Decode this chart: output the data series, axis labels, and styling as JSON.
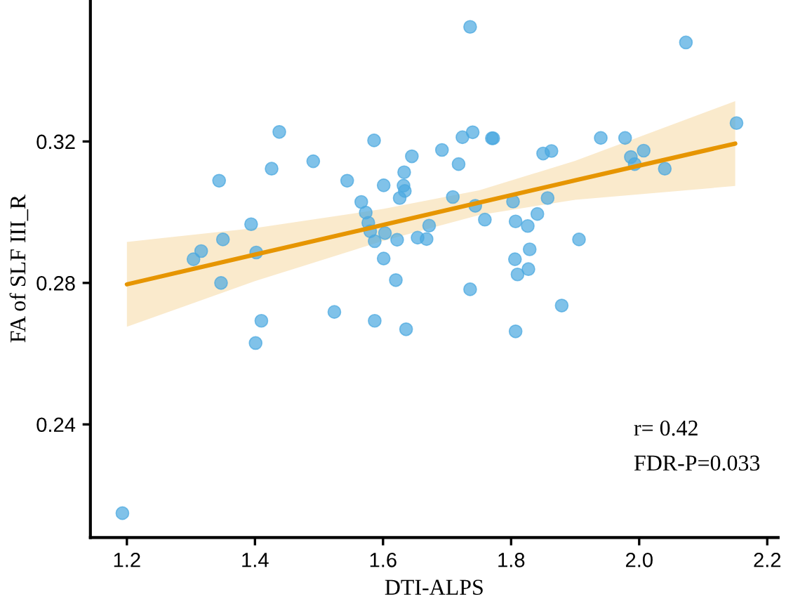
{
  "chart_data": {
    "type": "scatter",
    "xlabel": "DTI-ALPS",
    "ylabel": "FA of SLF III_R",
    "xlim": [
      1.143,
      2.217
    ],
    "ylim": [
      0.208,
      0.36
    ],
    "xticks": [
      1.2,
      1.4,
      1.6,
      1.8,
      {
        "value": 2,
        "label": "2.0"
      },
      2.2
    ],
    "yticks": [
      0.24,
      0.28,
      0.32
    ],
    "grid": false,
    "legend": false,
    "annotations": [
      {
        "text": "r= 0.42"
      },
      {
        "text": "FDR-P=0.033"
      }
    ],
    "series": [
      {
        "marker": "circle",
        "color": "#4aa8e0",
        "x": [
          1.438,
          1.586,
          1.645,
          1.491,
          1.426,
          1.633,
          1.344,
          1.544,
          1.601,
          1.632,
          1.634,
          1.626,
          1.566,
          1.573,
          1.394,
          1.577,
          1.58,
          1.603,
          1.672,
          1.35,
          1.587,
          1.622,
          1.654,
          1.668,
          1.316,
          1.304,
          1.402,
          1.601,
          1.347,
          1.62,
          1.736,
          2.073,
          2.152,
          1.692,
          1.724,
          1.74,
          1.77,
          1.772,
          1.718,
          1.85,
          1.863,
          1.94,
          1.978,
          1.987,
          1.993,
          2.007,
          2.04,
          1.709,
          1.744,
          1.803,
          1.857,
          1.759,
          1.841,
          1.807,
          1.826,
          1.906,
          1.829,
          1.806,
          1.827,
          1.81,
          1.736,
          1.879,
          1.524,
          1.41,
          1.587,
          1.636,
          1.807,
          1.401,
          1.193
        ],
        "values": [
          0.3227,
          0.3203,
          0.3158,
          0.3144,
          0.3123,
          0.3113,
          0.3089,
          0.3089,
          0.3076,
          0.3075,
          0.306,
          0.304,
          0.3029,
          0.2999,
          0.2966,
          0.297,
          0.2946,
          0.2941,
          0.2962,
          0.2923,
          0.2918,
          0.2922,
          0.2928,
          0.2924,
          0.289,
          0.2867,
          0.2886,
          0.2869,
          0.28,
          0.2808,
          0.3524,
          0.348,
          0.3252,
          0.3176,
          0.3212,
          0.3226,
          0.3209,
          0.3209,
          0.3136,
          0.3166,
          0.3173,
          0.321,
          0.321,
          0.3156,
          0.3136,
          0.3174,
          0.3123,
          0.3043,
          0.3018,
          0.303,
          0.304,
          0.2979,
          0.2995,
          0.2974,
          0.2961,
          0.2923,
          0.2895,
          0.2867,
          0.2839,
          0.2824,
          0.2782,
          0.2736,
          0.2718,
          0.2693,
          0.2693,
          0.2669,
          0.2663,
          0.263,
          0.2149
        ]
      },
      {
        "type": "line",
        "color": "#e69500",
        "x": [
          1.2,
          1.4,
          1.6,
          1.75,
          1.9,
          2.15
        ],
        "values": [
          0.2796,
          0.288,
          0.2964,
          0.3027,
          0.309,
          0.3194
        ],
        "lower": [
          0.2676,
          0.2805,
          0.2919,
          0.2992,
          0.3035,
          0.3074
        ],
        "upper": [
          0.2916,
          0.2955,
          0.3009,
          0.3062,
          0.3145,
          0.3314
        ]
      }
    ]
  }
}
